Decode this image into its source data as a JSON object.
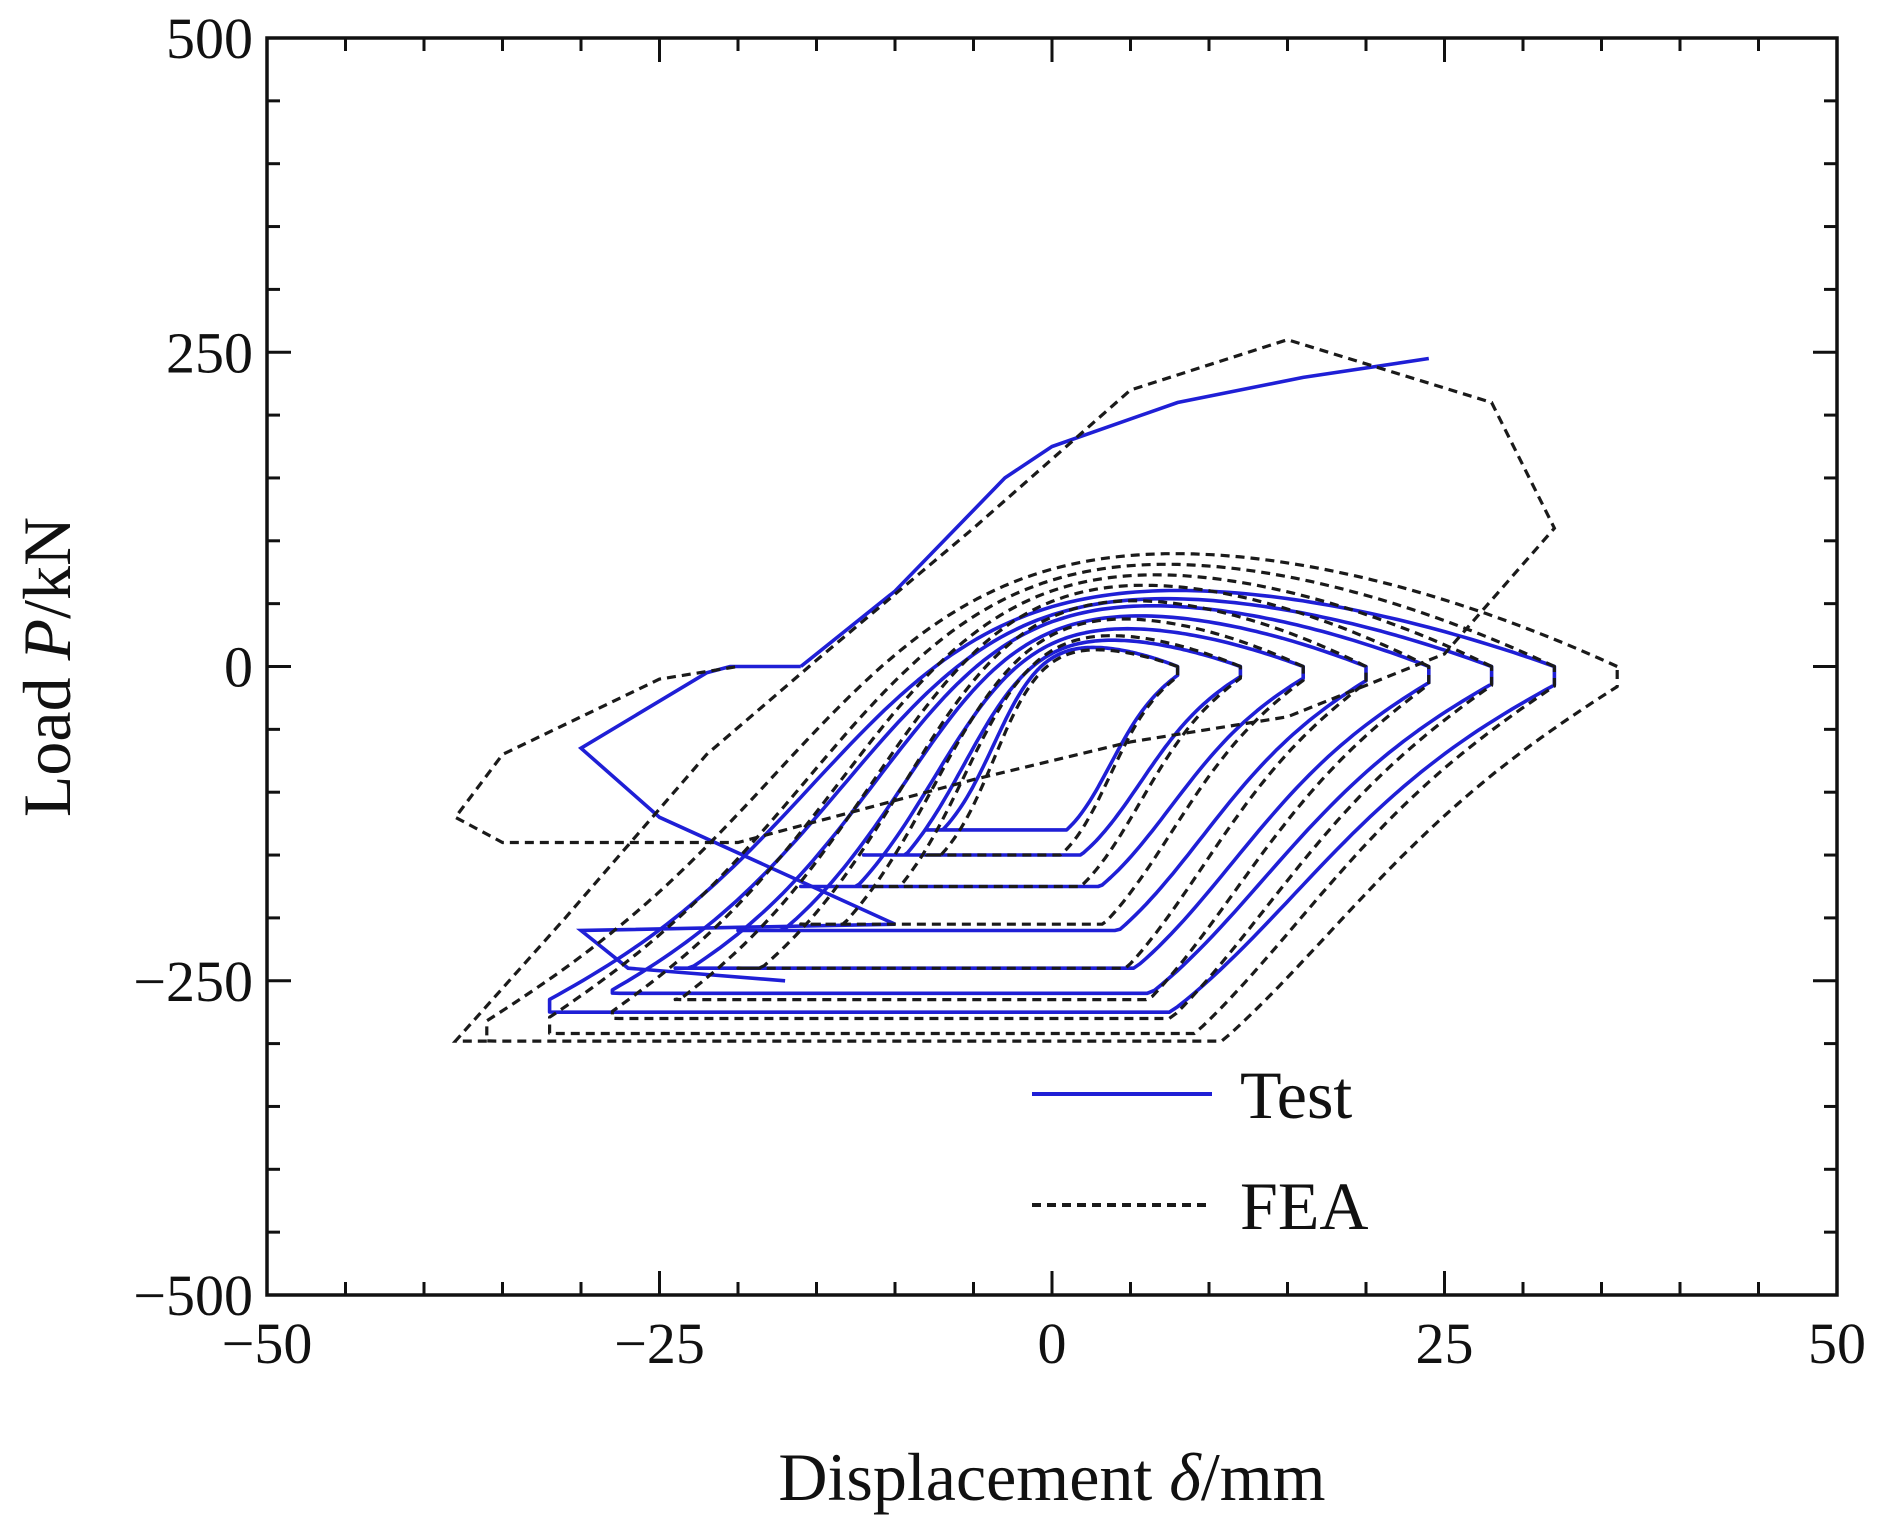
{
  "chart_data": {
    "type": "line",
    "title": "",
    "xlabel": "Displacement δ/mm",
    "xlabel_prefix": "Displacement ",
    "xlabel_symbol": "δ",
    "xlabel_suffix": "/mm",
    "ylabel": "Load P/kN",
    "ylabel_prefix": "Load ",
    "ylabel_symbol": "P",
    "ylabel_suffix": "/kN",
    "xlim": [
      -50,
      50
    ],
    "ylim": [
      -500,
      500
    ],
    "x_ticks": [
      -50,
      -25,
      0,
      25,
      50
    ],
    "x_tick_labels": [
      "−50",
      "−25",
      "0",
      "25",
      "50"
    ],
    "y_ticks": [
      -500,
      -250,
      0,
      250,
      500
    ],
    "y_tick_labels": [
      "−500",
      "−250",
      "0",
      "250",
      "500"
    ],
    "x_minor_step": 5,
    "y_minor_step": 50,
    "grid": false,
    "legend_position": "bottom-right",
    "series": [
      {
        "name": "Test",
        "color": "#1f1fd6",
        "style": "solid",
        "loops": [
          {
            "a": 8,
            "b": 150,
            "c": 130,
            "w": 22
          },
          {
            "a": 12,
            "b": 190,
            "c": 150,
            "w": 30
          },
          {
            "a": 16,
            "b": 225,
            "c": 175,
            "w": 42
          },
          {
            "a": 20,
            "b": 250,
            "c": 210,
            "w": 55
          },
          {
            "a": 24,
            "b": 262,
            "c": 240,
            "w": 65
          },
          {
            "a": 28,
            "b": 272,
            "c": 260,
            "w": 72
          },
          {
            "a": 32,
            "b": 280,
            "c": 275,
            "w": 80
          }
        ],
        "extra_path": [
          [
            -16,
            0
          ],
          [
            -20.5,
            0
          ],
          [
            -22,
            -5
          ],
          [
            -30,
            -65
          ],
          [
            -25,
            -120
          ],
          [
            -10,
            -205
          ],
          [
            -30,
            -210
          ],
          [
            -27,
            -240
          ],
          [
            -22,
            -245
          ],
          [
            -17,
            -250
          ]
        ],
        "upper_branch": [
          [
            -16,
            0
          ],
          [
            -10,
            60
          ],
          [
            -3,
            150
          ],
          [
            0,
            175
          ],
          [
            8,
            210
          ],
          [
            16,
            230
          ],
          [
            24,
            245
          ]
        ]
      },
      {
        "name": "FEA",
        "color": "#1a1a1a",
        "style": "dashed",
        "loops": [
          {
            "a": 8,
            "b": 170,
            "c": 150,
            "w": 20
          },
          {
            "a": 12,
            "b": 215,
            "c": 175,
            "w": 35
          },
          {
            "a": 16,
            "b": 250,
            "c": 205,
            "w": 52
          },
          {
            "a": 20,
            "b": 270,
            "c": 240,
            "w": 70
          },
          {
            "a": 24,
            "b": 283,
            "c": 265,
            "w": 85
          },
          {
            "a": 28,
            "b": 290,
            "c": 280,
            "w": 95
          },
          {
            "a": 32,
            "b": 295,
            "c": 292,
            "w": 105
          },
          {
            "a": 36,
            "b": 298,
            "c": 298,
            "w": 115
          }
        ],
        "extra_path": [
          [
            -36,
            -298
          ],
          [
            -38,
            -298
          ],
          [
            -31,
            -200
          ],
          [
            -22,
            -70
          ],
          [
            -15,
            5
          ],
          [
            -5,
            110
          ],
          [
            5,
            220
          ],
          [
            15,
            260
          ],
          [
            28,
            210
          ],
          [
            32,
            110
          ],
          [
            25,
            10
          ],
          [
            15,
            -40
          ],
          [
            5,
            -60
          ],
          [
            -5,
            -90
          ],
          [
            -20,
            -140
          ],
          [
            -35,
            -140
          ],
          [
            -38,
            -120
          ],
          [
            -35,
            -70
          ],
          [
            -25,
            -10
          ],
          [
            -20,
            0
          ]
        ]
      }
    ],
    "legend": [
      {
        "label": "Test",
        "color": "#1f1fd6",
        "style": "solid"
      },
      {
        "label": "FEA",
        "color": "#1a1a1a",
        "style": "dashed"
      }
    ]
  }
}
